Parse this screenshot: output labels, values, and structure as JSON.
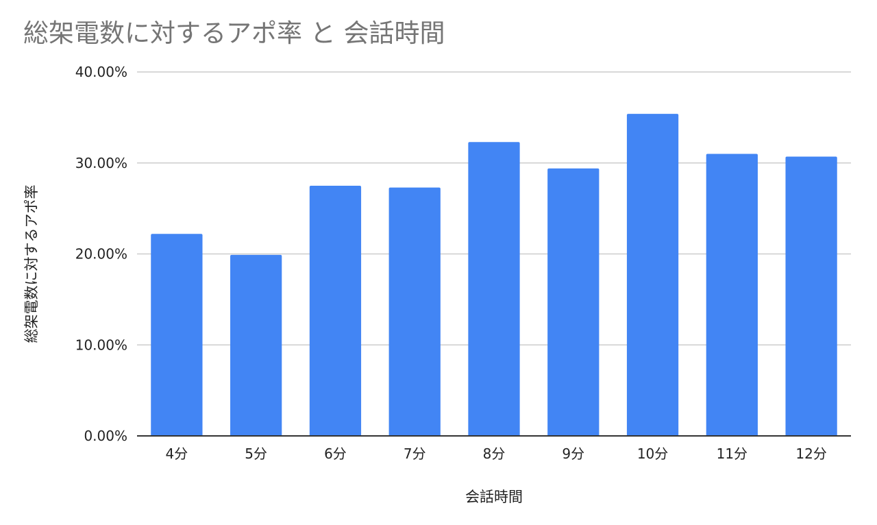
{
  "chart_data": {
    "type": "bar",
    "title": "総架電数に対するアポ率 と 会話時間",
    "xlabel": "会話時間",
    "ylabel": "総架電数に対するアポ率",
    "categories": [
      "4分",
      "5分",
      "6分",
      "7分",
      "8分",
      "9分",
      "10分",
      "11分",
      "12分"
    ],
    "series": [
      {
        "values": [
          22.2,
          19.9,
          27.5,
          27.3,
          32.3,
          29.4,
          35.4,
          31.0,
          30.7
        ]
      }
    ],
    "ylim": [
      0,
      40
    ],
    "yticks": [
      "0.00%",
      "10.00%",
      "20.00%",
      "30.00%",
      "40.00%"
    ],
    "grid": true,
    "legend": "none",
    "colors": {
      "bar": "#4285f4",
      "grid": "#cccccc",
      "axis": "#333333"
    }
  }
}
